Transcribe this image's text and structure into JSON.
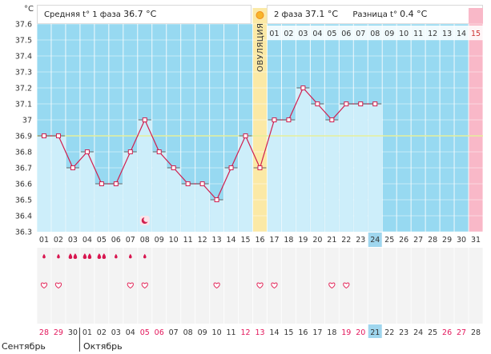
{
  "header": {
    "unit": "°C",
    "phase1_label": "Средняя t° 1 фаза",
    "phase1_value": "36.7 °C",
    "phase2_label": "2 фаза",
    "phase2_value": "37.1 °C",
    "diff_label": "Разница t°",
    "diff_value": "0.4 °C"
  },
  "ovulation_label": "ОВУЛЯЦИЯ",
  "chart_data": {
    "type": "line",
    "ylim": [
      36.3,
      37.6
    ],
    "y_ticks": [
      "36.3",
      "36.4",
      "36.5",
      "36.6",
      "36.7",
      "36.8",
      "36.9",
      "37",
      "37.1",
      "37.2",
      "37.3",
      "37.4",
      "37.5",
      "37.6"
    ],
    "coverline": 36.9,
    "cycle_days": [
      "01",
      "02",
      "03",
      "04",
      "05",
      "06",
      "07",
      "08",
      "09",
      "10",
      "11",
      "12",
      "13",
      "14",
      "15",
      "16",
      "17",
      "18",
      "19",
      "20",
      "21",
      "22",
      "23",
      "24",
      "25",
      "26",
      "27",
      "28",
      "29",
      "30",
      "31"
    ],
    "phase2_days": [
      "01",
      "02",
      "03",
      "04",
      "05",
      "06",
      "07",
      "08",
      "09",
      "10",
      "11",
      "12",
      "13",
      "14",
      "15"
    ],
    "temperatures": [
      36.9,
      36.9,
      36.7,
      36.8,
      36.6,
      36.6,
      36.8,
      37.0,
      36.8,
      36.7,
      36.6,
      36.6,
      36.5,
      36.7,
      36.9,
      36.7,
      37.0,
      37.0,
      37.2,
      37.1,
      37.0,
      37.1,
      37.1,
      37.1
    ],
    "current_day_index": 23,
    "ovulation_day_index": 15,
    "period_day_index": 30,
    "drops": [
      1,
      1,
      2,
      2,
      2,
      1,
      1,
      1
    ],
    "moon_day_index": 7,
    "hearts": [
      0,
      1,
      6,
      7,
      12,
      15,
      16,
      20,
      21
    ],
    "dates": [
      "28",
      "29",
      "30",
      "01",
      "02",
      "03",
      "04",
      "05",
      "06",
      "07",
      "08",
      "09",
      "10",
      "11",
      "12",
      "13",
      "14",
      "15",
      "16",
      "17",
      "18",
      "19",
      "20",
      "21",
      "22",
      "23",
      "24",
      "25",
      "26",
      "27",
      "28"
    ],
    "red_dates": [
      0,
      1,
      7,
      8,
      14,
      15,
      21,
      22,
      28,
      29
    ],
    "months": [
      "Сентябрь",
      "Октябрь"
    ]
  }
}
